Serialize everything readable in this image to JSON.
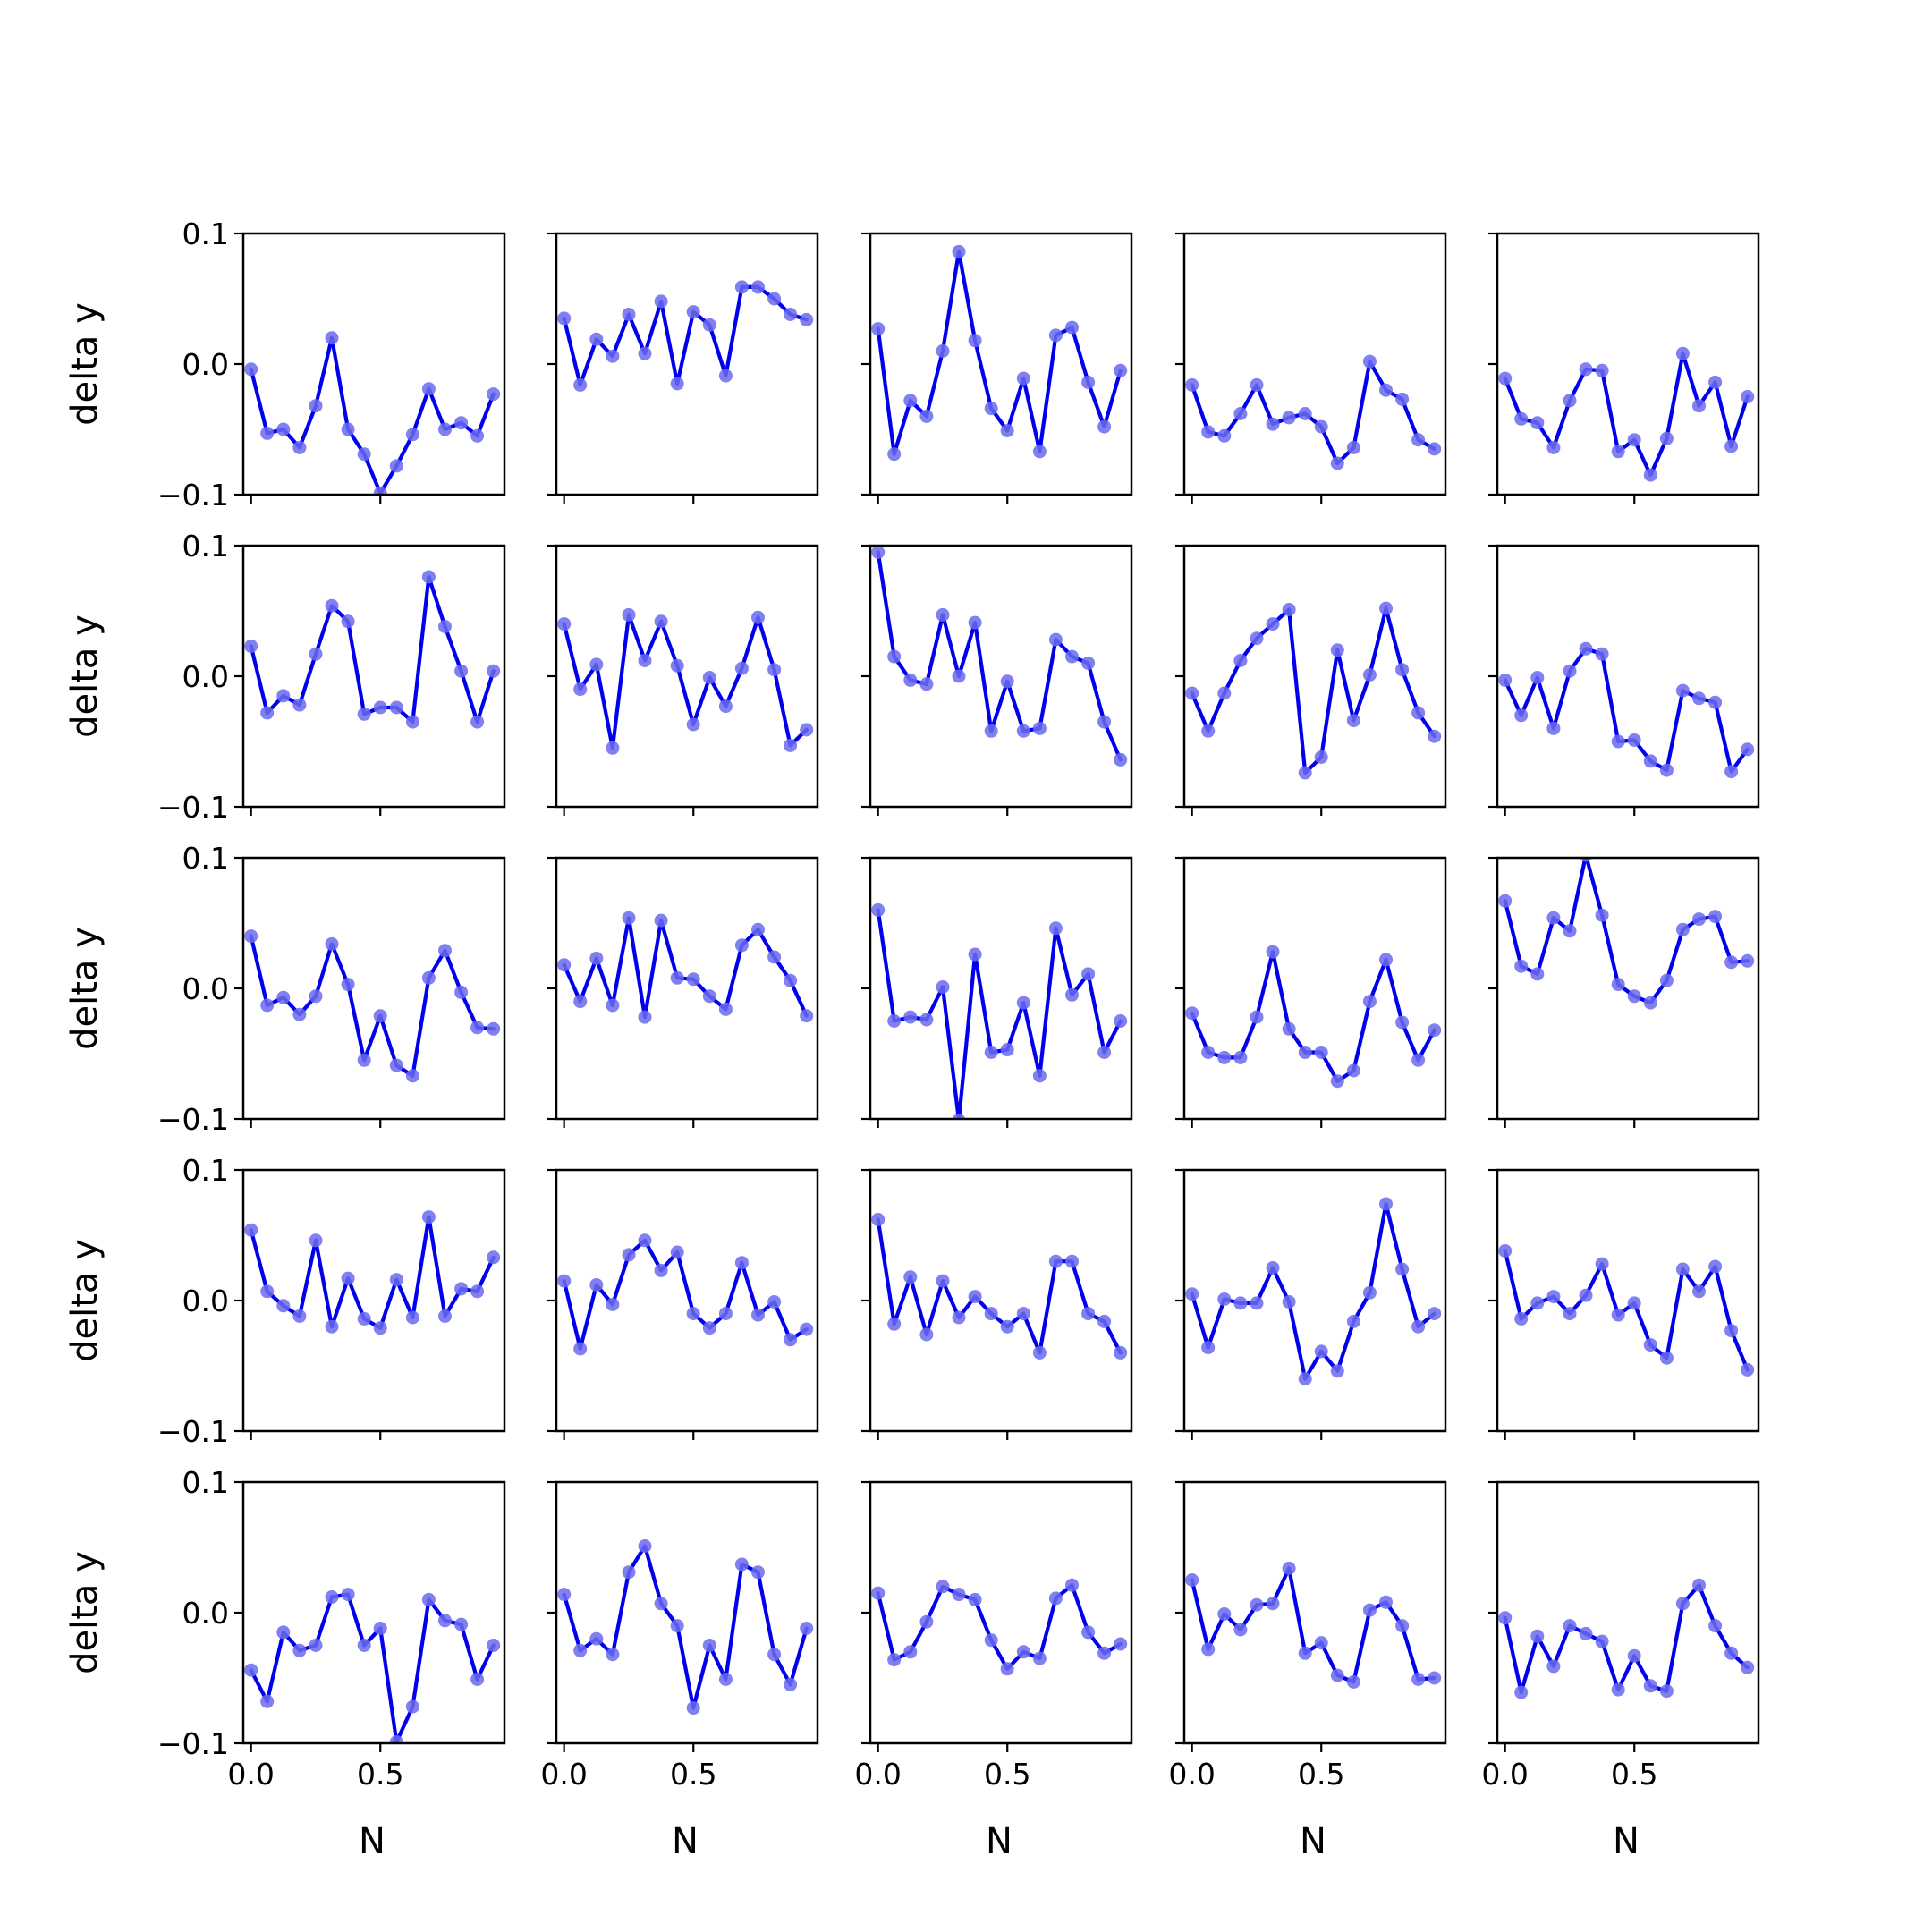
{
  "figure": {
    "rows": 5,
    "cols": 5,
    "line_color": "#0000ee",
    "marker_color": "#6a6aee",
    "axes_color": "#000000",
    "background": "#ffffff"
  },
  "chart_data": {
    "type": "line",
    "layout": "5x5 grid of small multiples",
    "xlabel": "N",
    "ylabel": "delta y",
    "x_ticks": [
      0.0,
      0.5
    ],
    "x_tick_labels": [
      "0.0",
      "0.5"
    ],
    "y_ticks": [
      -0.1,
      0.0,
      0.1
    ],
    "y_tick_labels": [
      "−0.1",
      "0.0",
      "0.1"
    ],
    "xlim": [
      -0.03,
      0.98
    ],
    "ylim": [
      -0.1,
      0.1
    ],
    "x": [
      0.0,
      0.0625,
      0.125,
      0.1875,
      0.25,
      0.3125,
      0.375,
      0.4375,
      0.5,
      0.5625,
      0.625,
      0.6875,
      0.75,
      0.8125,
      0.875,
      0.9375
    ],
    "panels": [
      {
        "row": 1,
        "col": 1,
        "y": [
          -0.004,
          -0.053,
          -0.05,
          -0.064,
          -0.032,
          0.02,
          -0.05,
          -0.069,
          -0.099,
          -0.078,
          -0.054,
          -0.019,
          -0.05,
          -0.045,
          -0.055,
          -0.023
        ]
      },
      {
        "row": 1,
        "col": 2,
        "y": [
          0.035,
          -0.016,
          0.019,
          0.006,
          0.038,
          0.008,
          0.048,
          -0.015,
          0.04,
          0.03,
          -0.009,
          0.059,
          0.059,
          0.05,
          0.038,
          0.034
        ]
      },
      {
        "row": 1,
        "col": 3,
        "y": [
          0.027,
          -0.069,
          -0.028,
          -0.04,
          0.01,
          0.086,
          0.018,
          -0.034,
          -0.051,
          -0.011,
          -0.067,
          0.022,
          0.028,
          -0.014,
          -0.048,
          -0.005
        ]
      },
      {
        "row": 1,
        "col": 4,
        "y": [
          -0.016,
          -0.052,
          -0.055,
          -0.038,
          -0.016,
          -0.046,
          -0.041,
          -0.038,
          -0.048,
          -0.076,
          -0.064,
          0.002,
          -0.02,
          -0.027,
          -0.058,
          -0.065
        ]
      },
      {
        "row": 1,
        "col": 5,
        "y": [
          -0.011,
          -0.042,
          -0.045,
          -0.064,
          -0.028,
          -0.004,
          -0.005,
          -0.067,
          -0.058,
          -0.085,
          -0.057,
          0.008,
          -0.032,
          -0.014,
          -0.063,
          -0.025
        ]
      },
      {
        "row": 2,
        "col": 1,
        "y": [
          0.023,
          -0.028,
          -0.015,
          -0.022,
          0.017,
          0.054,
          0.042,
          -0.029,
          -0.024,
          -0.024,
          -0.035,
          0.076,
          0.038,
          0.004,
          -0.035,
          0.004
        ]
      },
      {
        "row": 2,
        "col": 2,
        "y": [
          0.04,
          -0.01,
          0.009,
          -0.055,
          0.047,
          0.012,
          0.042,
          0.008,
          -0.037,
          -0.001,
          -0.023,
          0.006,
          0.045,
          0.005,
          -0.053,
          -0.041
        ]
      },
      {
        "row": 2,
        "col": 3,
        "y": [
          0.095,
          0.015,
          -0.003,
          -0.006,
          0.047,
          0.0,
          0.041,
          -0.042,
          -0.004,
          -0.042,
          -0.04,
          0.028,
          0.015,
          0.01,
          -0.035,
          -0.064
        ]
      },
      {
        "row": 2,
        "col": 4,
        "y": [
          -0.013,
          -0.042,
          -0.013,
          0.012,
          0.029,
          0.04,
          0.051,
          -0.074,
          -0.062,
          0.02,
          -0.034,
          0.001,
          0.052,
          0.005,
          -0.028,
          -0.046
        ]
      },
      {
        "row": 2,
        "col": 5,
        "y": [
          -0.003,
          -0.03,
          -0.001,
          -0.04,
          0.004,
          0.021,
          0.017,
          -0.05,
          -0.049,
          -0.065,
          -0.072,
          -0.011,
          -0.017,
          -0.02,
          -0.073,
          -0.056
        ]
      },
      {
        "row": 3,
        "col": 1,
        "y": [
          0.04,
          -0.013,
          -0.007,
          -0.02,
          -0.006,
          0.034,
          0.003,
          -0.055,
          -0.021,
          -0.059,
          -0.067,
          0.008,
          0.029,
          -0.003,
          -0.03,
          -0.031
        ]
      },
      {
        "row": 3,
        "col": 2,
        "y": [
          0.018,
          -0.01,
          0.023,
          -0.013,
          0.054,
          -0.022,
          0.052,
          0.008,
          0.007,
          -0.006,
          -0.016,
          0.033,
          0.045,
          0.024,
          0.006,
          -0.021
        ]
      },
      {
        "row": 3,
        "col": 3,
        "y": [
          0.06,
          -0.025,
          -0.022,
          -0.024,
          0.001,
          -0.101,
          0.026,
          -0.049,
          -0.047,
          -0.011,
          -0.067,
          0.046,
          -0.005,
          0.011,
          -0.049,
          -0.025
        ]
      },
      {
        "row": 3,
        "col": 4,
        "y": [
          -0.019,
          -0.049,
          -0.053,
          -0.053,
          -0.022,
          0.028,
          -0.031,
          -0.049,
          -0.049,
          -0.071,
          -0.063,
          -0.01,
          0.022,
          -0.026,
          -0.055,
          -0.032
        ]
      },
      {
        "row": 3,
        "col": 5,
        "y": [
          0.067,
          0.017,
          0.011,
          0.054,
          0.044,
          0.102,
          0.056,
          0.003,
          -0.006,
          -0.011,
          0.006,
          0.045,
          0.053,
          0.055,
          0.02,
          0.021
        ]
      },
      {
        "row": 4,
        "col": 1,
        "y": [
          0.054,
          0.007,
          -0.004,
          -0.012,
          0.046,
          -0.02,
          0.017,
          -0.014,
          -0.021,
          0.016,
          -0.013,
          0.064,
          -0.012,
          0.009,
          0.007,
          0.033
        ]
      },
      {
        "row": 4,
        "col": 2,
        "y": [
          0.015,
          -0.037,
          0.012,
          -0.003,
          0.035,
          0.046,
          0.023,
          0.037,
          -0.01,
          -0.021,
          -0.01,
          0.029,
          -0.011,
          -0.001,
          -0.03,
          -0.022
        ]
      },
      {
        "row": 4,
        "col": 3,
        "y": [
          0.062,
          -0.018,
          0.018,
          -0.026,
          0.015,
          -0.013,
          0.003,
          -0.01,
          -0.02,
          -0.01,
          -0.04,
          0.03,
          0.03,
          -0.01,
          -0.016,
          -0.04
        ]
      },
      {
        "row": 4,
        "col": 4,
        "y": [
          0.005,
          -0.036,
          0.001,
          -0.002,
          -0.002,
          0.025,
          -0.001,
          -0.06,
          -0.039,
          -0.054,
          -0.016,
          0.006,
          0.074,
          0.024,
          -0.02,
          -0.01
        ]
      },
      {
        "row": 4,
        "col": 5,
        "y": [
          0.038,
          -0.014,
          -0.002,
          0.003,
          -0.01,
          0.004,
          0.028,
          -0.011,
          -0.002,
          -0.034,
          -0.044,
          0.024,
          0.007,
          0.026,
          -0.023,
          -0.053
        ]
      },
      {
        "row": 5,
        "col": 1,
        "y": [
          -0.044,
          -0.068,
          -0.015,
          -0.029,
          -0.025,
          0.012,
          0.014,
          -0.025,
          -0.012,
          -0.099,
          -0.072,
          0.01,
          -0.006,
          -0.009,
          -0.051,
          -0.025
        ]
      },
      {
        "row": 5,
        "col": 2,
        "y": [
          0.014,
          -0.029,
          -0.02,
          -0.032,
          0.031,
          0.051,
          0.007,
          -0.01,
          -0.073,
          -0.025,
          -0.051,
          0.037,
          0.031,
          -0.032,
          -0.055,
          -0.012
        ]
      },
      {
        "row": 5,
        "col": 3,
        "y": [
          0.015,
          -0.036,
          -0.03,
          -0.007,
          0.02,
          0.014,
          0.01,
          -0.021,
          -0.043,
          -0.03,
          -0.035,
          0.011,
          0.021,
          -0.015,
          -0.031,
          -0.024
        ]
      },
      {
        "row": 5,
        "col": 4,
        "y": [
          0.025,
          -0.028,
          -0.001,
          -0.013,
          0.006,
          0.007,
          0.034,
          -0.031,
          -0.023,
          -0.048,
          -0.053,
          0.002,
          0.008,
          -0.01,
          -0.051,
          -0.05
        ]
      },
      {
        "row": 5,
        "col": 5,
        "y": [
          -0.004,
          -0.061,
          -0.018,
          -0.041,
          -0.01,
          -0.016,
          -0.022,
          -0.059,
          -0.033,
          -0.056,
          -0.06,
          0.007,
          0.021,
          -0.01,
          -0.031,
          -0.042
        ]
      }
    ]
  }
}
